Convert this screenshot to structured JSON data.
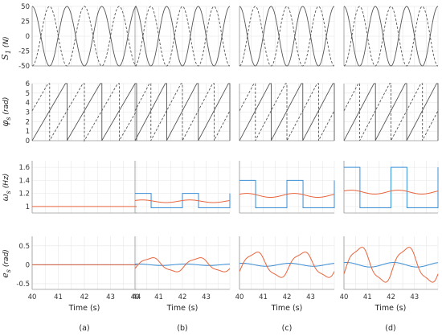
{
  "figure": {
    "column_labels": [
      "(a)",
      "(b)",
      "(c)",
      "(d)"
    ],
    "time_label": "Time (s)",
    "x_ticks_first_col": [
      "40",
      "41",
      "42",
      "43",
      "44"
    ],
    "x_ticks_other_cols": [
      "40",
      "41",
      "42",
      "43"
    ],
    "colors": {
      "solid": "#555555",
      "dashed": "#555555",
      "blue": "#3b8fd6",
      "orange": "#e8643c",
      "grid": "#e6e6e6",
      "axis": "#999999"
    }
  },
  "chart_data": [
    {
      "type": "line",
      "row": "S1",
      "ylabel": "S",
      "ylabel_sub": "1",
      "ylabel_unit": "(N)",
      "ylim": [
        -50,
        50
      ],
      "yticks": [
        "50",
        "25",
        "0",
        "-25",
        "-50"
      ],
      "xlim": [
        40,
        44
      ],
      "grid": true,
      "series": [
        {
          "style": "solid",
          "function": "cosine",
          "amplitude": 50,
          "frequency_hz": 0.75,
          "phase_rad": 0
        },
        {
          "style": "dashed",
          "function": "cosine",
          "amplitude": 50,
          "frequency_hz": 0.75,
          "phase_rad": 3.14159
        }
      ]
    },
    {
      "type": "line",
      "row": "phi_s",
      "ylabel": "φ",
      "ylabel_sub": "s",
      "ylabel_unit": "(rad)",
      "ylim": [
        0,
        6
      ],
      "yticks": [
        "6",
        "5",
        "4",
        "3",
        "2",
        "1",
        "0"
      ],
      "xlim": [
        40,
        44
      ],
      "grid": true,
      "series": [
        {
          "style": "solid",
          "function": "sawtooth",
          "max": 6.2832,
          "period_s": 1.333,
          "offset_s": 0
        },
        {
          "style": "dashed",
          "function": "sawtooth",
          "max": 6.2832,
          "period_s": 1.333,
          "offset_s": 0.667
        }
      ]
    },
    {
      "type": "line",
      "row": "omega_s",
      "ylabel": "ω",
      "ylabel_sub": "s",
      "ylabel_unit": "(Hz)",
      "ylim": [
        0.9,
        1.7
      ],
      "yticks": [
        "1.6",
        "1.4",
        "1.2",
        "1"
      ],
      "xlim": [
        40,
        44
      ],
      "grid": true,
      "columns": [
        {
          "blue_high": 1.0,
          "blue_low": 1.0,
          "orange_mean": 1.0,
          "orange_amp": 0.0
        },
        {
          "blue_high": 1.2,
          "blue_low": 0.98,
          "orange_mean": 1.08,
          "orange_amp": 0.02
        },
        {
          "blue_high": 1.4,
          "blue_low": 0.98,
          "orange_mean": 1.17,
          "orange_amp": 0.03
        },
        {
          "blue_high": 1.6,
          "blue_low": 0.98,
          "orange_mean": 1.22,
          "orange_amp": 0.03
        }
      ]
    },
    {
      "type": "line",
      "row": "e_s",
      "ylabel": "e",
      "ylabel_sub": "s",
      "ylabel_unit": "(rad)",
      "ylim": [
        -0.65,
        0.75
      ],
      "yticks": [
        "0.5",
        "0",
        "-0.5"
      ],
      "xlim": [
        40,
        44
      ],
      "grid": true,
      "columns": [
        {
          "orange_amp": 0.0,
          "blue_amp": 0.0
        },
        {
          "orange_amp": 0.25,
          "blue_amp": 0.02
        },
        {
          "orange_amp": 0.45,
          "blue_amp": 0.04
        },
        {
          "orange_amp": 0.62,
          "blue_amp": 0.06
        }
      ]
    }
  ]
}
